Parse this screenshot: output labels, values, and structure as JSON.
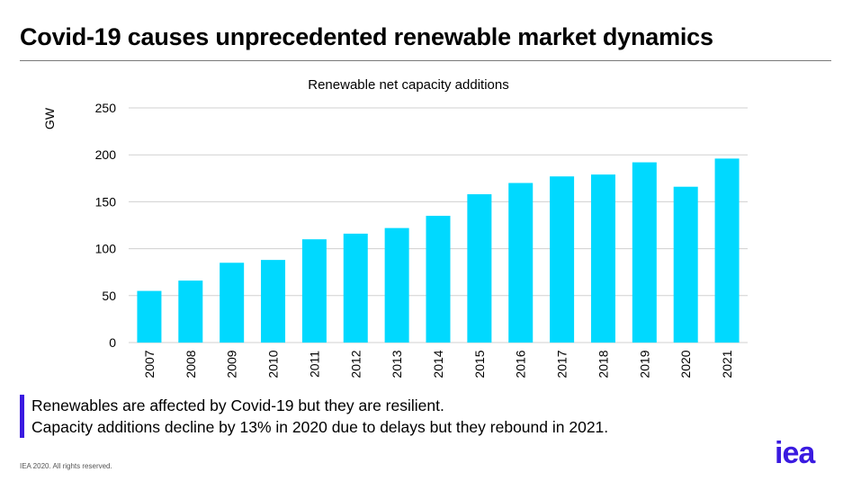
{
  "slide": {
    "title": "Covid-19 causes unprecedented renewable market dynamics",
    "message_lines": [
      "Renewables are affected by Covid-19 but they are resilient.",
      "Capacity additions decline by 13% in 2020 due to delays but they rebound in 2021."
    ],
    "copyright": "IEA 2020. All rights reserved.",
    "logo_text": "iea"
  },
  "colors": {
    "bar": "#00d9ff",
    "accent": "#3a1ae0",
    "grid": "#d0d0d0"
  },
  "chart_data": {
    "type": "bar",
    "title": "Renewable net capacity additions",
    "xlabel": "",
    "ylabel": "GW",
    "categories": [
      "2007",
      "2008",
      "2009",
      "2010",
      "2011",
      "2012",
      "2013",
      "2014",
      "2015",
      "2016",
      "2017",
      "2018",
      "2019",
      "2020",
      "2021"
    ],
    "values": [
      55,
      66,
      85,
      88,
      110,
      116,
      122,
      135,
      158,
      170,
      177,
      179,
      192,
      166,
      196
    ],
    "ylim": [
      0,
      250
    ],
    "yticks": [
      0,
      50,
      100,
      150,
      200,
      250
    ],
    "grid": true,
    "legend": "none"
  }
}
